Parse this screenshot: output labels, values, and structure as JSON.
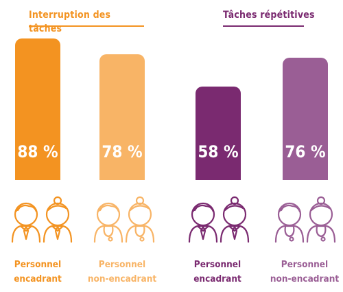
{
  "chart_data": {
    "type": "bar",
    "panels": [
      {
        "title": "Interruption des tâches",
        "color_dark": "#f39321",
        "color_light": "#f8b466",
        "categories": [
          "Personnel encadrant",
          "Personnel non-encadrant"
        ],
        "values": [
          88,
          78
        ],
        "value_labels": [
          "88 %",
          "78 %"
        ]
      },
      {
        "title": "Tâches répétitives",
        "color_dark": "#7a2a70",
        "color_light": "#9a5e95",
        "categories": [
          "Personnel encadrant",
          "Personnel non-encadrant"
        ],
        "values": [
          58,
          76
        ],
        "value_labels": [
          "58 %",
          "76 %"
        ]
      }
    ],
    "group_labels": [
      {
        "line1": "Personnel",
        "line2": "encadrant"
      },
      {
        "line1": "Personnel",
        "line2": "non-encadrant"
      },
      {
        "line1": "Personnel",
        "line2": "encadrant"
      },
      {
        "line1": "Personnel",
        "line2": "non-encadrant"
      }
    ],
    "ylim": [
      0,
      100
    ],
    "grid": false,
    "icons": [
      "manager-people-icon",
      "staff-people-icon",
      "manager-people-icon",
      "staff-people-icon"
    ]
  }
}
